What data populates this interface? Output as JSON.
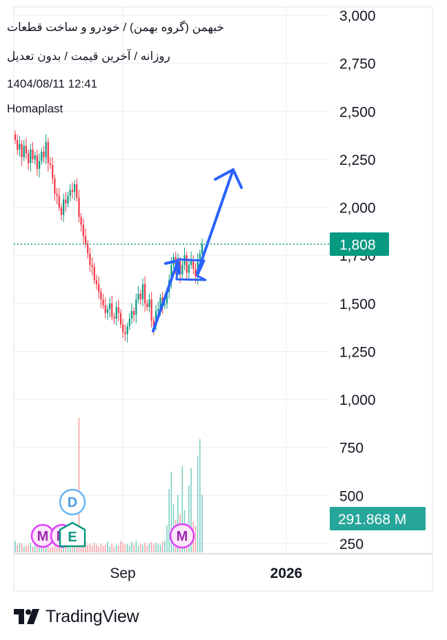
{
  "header": {
    "title": "خبهمن (گروه بهمن) / خودرو و ساخت قطعات",
    "subtitle": "روزانه / آخرین قیمت / بدون تعدیل",
    "datetime": "1404/08/11 12:41",
    "publisher": "Homaplast"
  },
  "brand": {
    "name": "TradingView"
  },
  "colors": {
    "up": "#089981",
    "down": "#f23645",
    "drawing": "#2962ff",
    "price_label_bg": "#089981",
    "volume_label_bg": "#26a69a",
    "earnings_badge": "#089981",
    "dividend_badge": "#64b5f6",
    "meeting_badge": "#e040fb",
    "grid": "#e9ebf0"
  },
  "chart_data": {
    "type": "candlestick",
    "price_axis": {
      "ticks": [
        "3,000",
        "2,750",
        "2,500",
        "2,250",
        "2,000",
        "1,750",
        "1,500",
        "1,250",
        "1,000",
        "750",
        "500",
        "250"
      ],
      "ylim": [
        140,
        3000
      ]
    },
    "time_axis": {
      "ticks": [
        "Sep",
        "2026"
      ]
    },
    "last_price": {
      "label": "1,808",
      "value": 1808
    },
    "volume_label": {
      "label": "291.868 M",
      "value": 291.868
    },
    "badges": [
      {
        "type": "meeting",
        "label": "M",
        "position": "left"
      },
      {
        "type": "earnings",
        "label": "E",
        "position": "left"
      },
      {
        "type": "dividend",
        "label": "D",
        "position": "left"
      },
      {
        "type": "meeting",
        "label": "M",
        "position": "right"
      }
    ],
    "closes": [
      2350,
      2300,
      2330,
      2260,
      2320,
      2280,
      2230,
      2300,
      2250,
      2270,
      2200,
      2240,
      2290,
      2260,
      2340,
      2230,
      2220,
      2150,
      2070,
      2060,
      2000,
      1960,
      2040,
      2020,
      2060,
      2090,
      2080,
      2120,
      2050,
      1950,
      1910,
      1850,
      1810,
      1760,
      1700,
      1690,
      1620,
      1600,
      1560,
      1520,
      1490,
      1450,
      1470,
      1500,
      1430,
      1420,
      1480,
      1450,
      1390,
      1350,
      1340,
      1380,
      1420,
      1460,
      1440,
      1520,
      1550,
      1520,
      1600,
      1500,
      1480,
      1520,
      1410,
      1380,
      1460,
      1470,
      1530,
      1490,
      1500,
      1560,
      1620,
      1700,
      1740,
      1680,
      1720,
      1650,
      1700,
      1750,
      1660,
      1700,
      1730,
      1680,
      1640,
      1720,
      1760,
      1808
    ],
    "volumes": [
      60,
      40,
      50,
      45,
      30,
      35,
      40,
      50,
      30,
      45,
      35,
      40,
      30,
      35,
      40,
      50,
      25,
      30,
      45,
      30,
      50,
      35,
      40,
      30,
      45,
      35,
      40,
      70,
      55,
      700,
      60,
      40,
      55,
      40,
      45,
      35,
      50,
      40,
      30,
      45,
      35,
      40,
      55,
      30,
      45,
      30,
      40,
      35,
      60,
      50,
      40,
      45,
      35,
      55,
      40,
      60,
      35,
      45,
      40,
      50,
      35,
      45,
      55,
      40,
      50,
      45,
      40,
      55,
      60,
      140,
      330,
      420,
      250,
      170,
      300,
      200,
      450,
      220,
      150,
      350,
      440,
      160,
      140,
      500,
      590,
      300
    ]
  }
}
